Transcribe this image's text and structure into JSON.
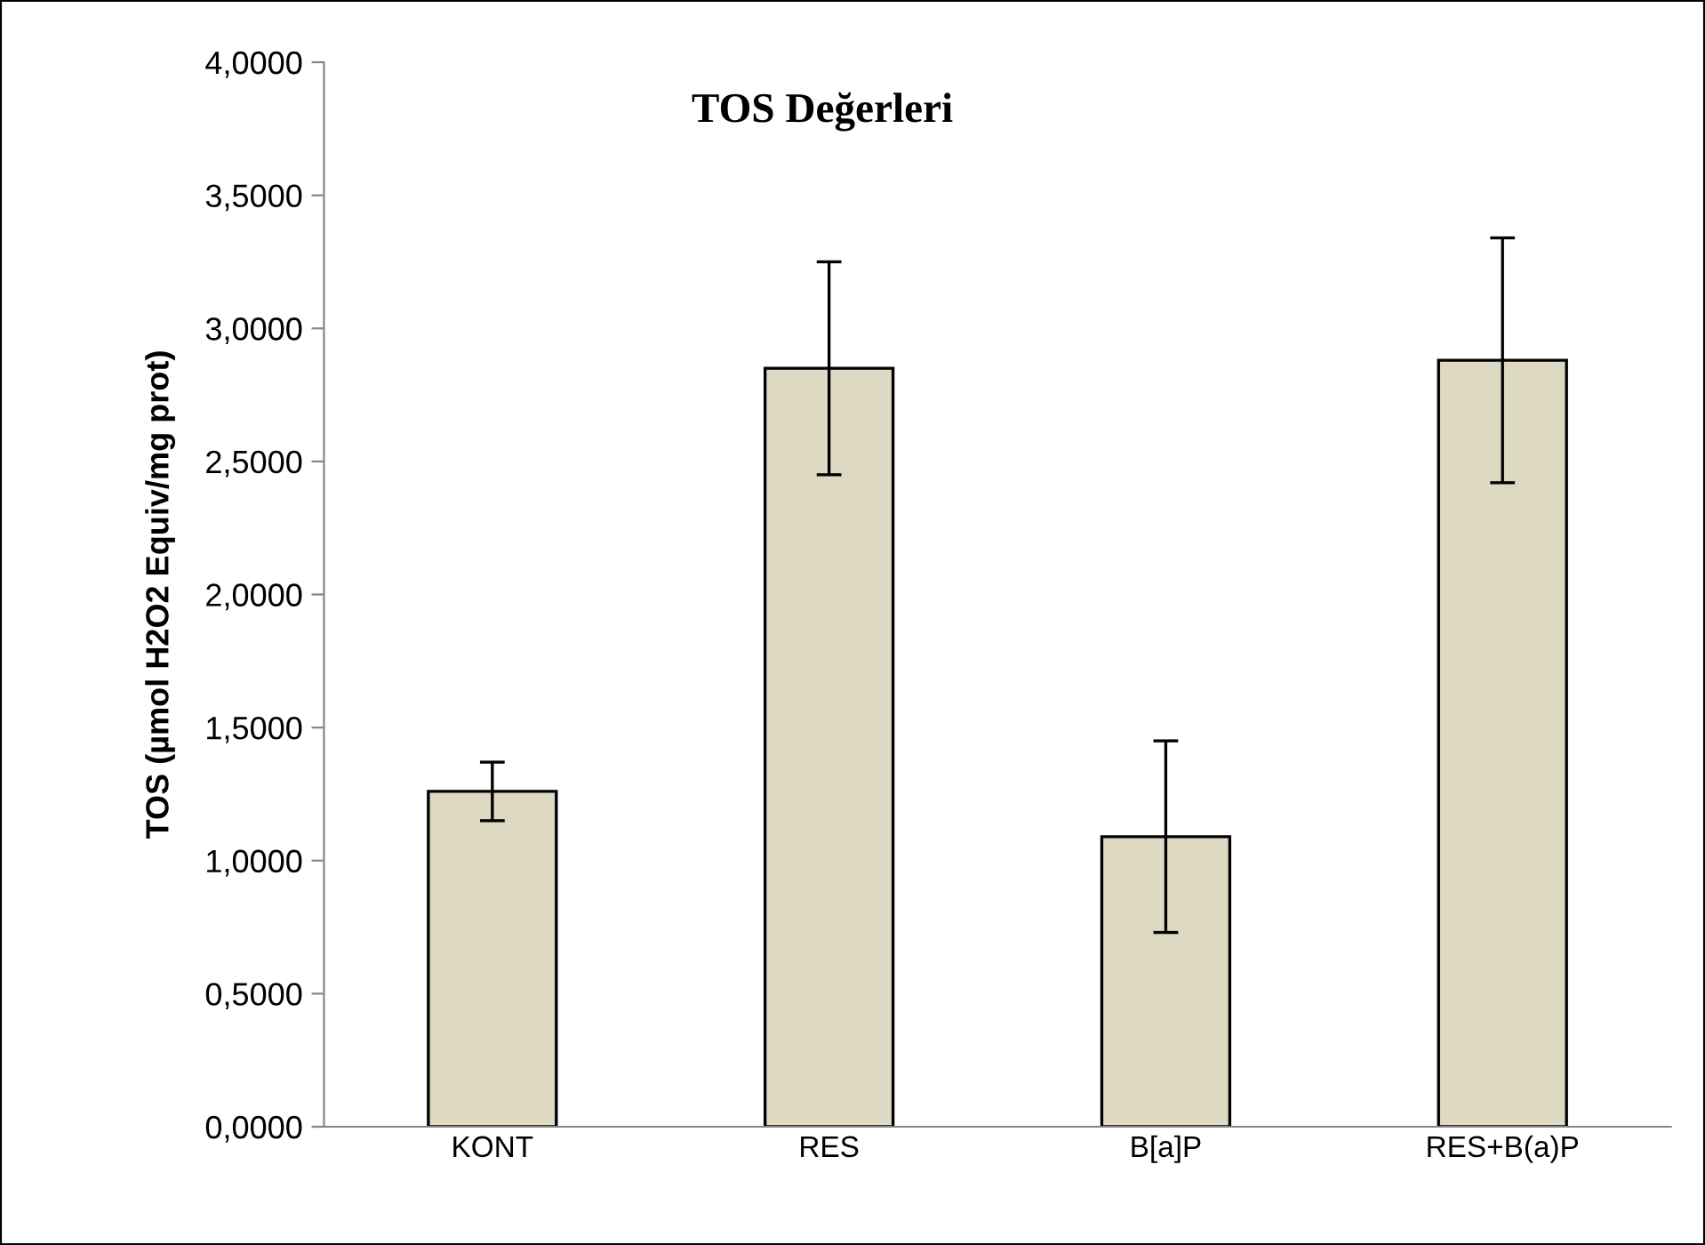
{
  "chart_data": {
    "type": "bar",
    "title": "TOS Değerleri",
    "ylabel": "TOS (µmol H2O2 Equiv/mg prot)",
    "categories": [
      "KONT",
      "RES",
      "B[a]P",
      "RES+B(a)P"
    ],
    "values": [
      1.26,
      2.85,
      1.09,
      2.88
    ],
    "errors": [
      [
        1.15,
        1.37
      ],
      [
        2.45,
        3.25
      ],
      [
        0.73,
        1.45
      ],
      [
        2.42,
        3.34
      ]
    ],
    "color": "#ddd9c3",
    "ylim": [
      0,
      4
    ],
    "yticks": [
      {
        "value": 0,
        "label": "0,0000"
      },
      {
        "value": 0.5,
        "label": "0,5000"
      },
      {
        "value": 1,
        "label": "1,0000"
      },
      {
        "value": 1.5,
        "label": "1,5000"
      },
      {
        "value": 2,
        "label": "2,0000"
      },
      {
        "value": 2.5,
        "label": "2,5000"
      },
      {
        "value": 3,
        "label": "3,0000"
      },
      {
        "value": 3.5,
        "label": "3,5000"
      },
      {
        "value": 4,
        "label": "4,0000"
      }
    ],
    "grid": false
  }
}
